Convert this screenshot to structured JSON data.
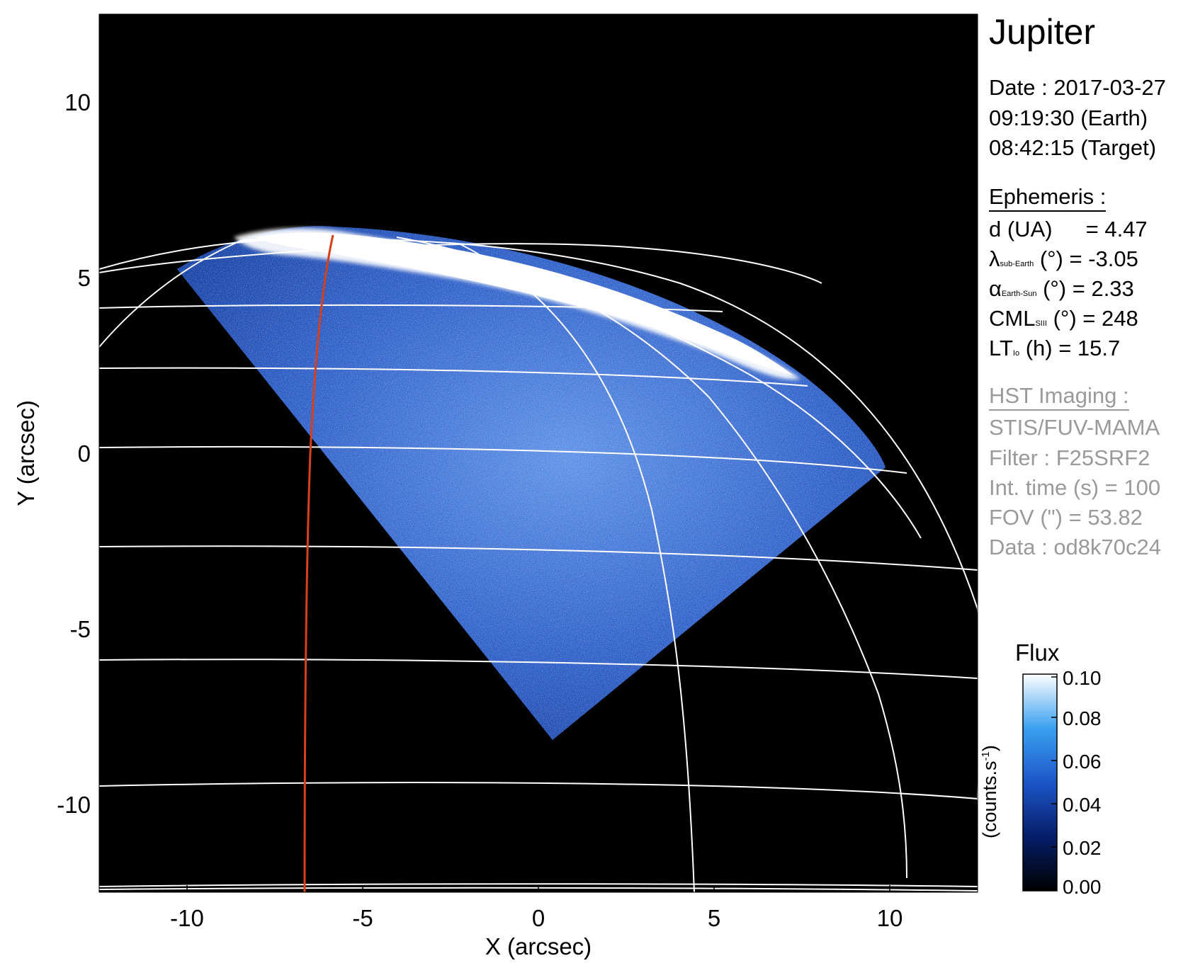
{
  "plot": {
    "xlabel": "X (arcsec)",
    "ylabel": "Y (arcsec)",
    "xlim": [
      -12.5,
      12.5
    ],
    "ylim": [
      -12.5,
      12.5
    ],
    "xticks": [
      "-10",
      "-5",
      "0",
      "5",
      "10"
    ],
    "yticks": [
      "10",
      "5",
      "0",
      "-5",
      "-10"
    ]
  },
  "info": {
    "title": "Jupiter",
    "date_line": "Date : 2017-03-27",
    "earth_time": "09:19:30 (Earth)",
    "target_time": "08:42:15 (Target)",
    "ephemeris_header": "Ephemeris :",
    "d_label": "d (UA)",
    "d_value": "= 4.47",
    "lambda_sym": "λ",
    "lambda_sub": "sub-Earth",
    "lambda_value": "(°) = -3.05",
    "alpha_sym": "α",
    "alpha_sub": "Earth-Sun",
    "alpha_value": "(°) = 2.33",
    "cml_sym": "CML",
    "cml_sub": "SIII",
    "cml_value": "(°) = 248",
    "lt_sym": "LT",
    "lt_sub": "Io",
    "lt_value": "(h) = 15.7",
    "hst_header": "HST Imaging :",
    "instrument": "STIS/FUV-MAMA",
    "filter": "Filter : F25SRF2",
    "int_time": "Int. time (s) = 100",
    "fov": "FOV (\") = 53.82",
    "dataset": "Data : od8k70c24"
  },
  "colorbar": {
    "title": "Flux",
    "unit_main": "(counts.s",
    "unit_exp": "-1",
    "unit_close": ")",
    "ticks": [
      "0.10",
      "0.08",
      "0.06",
      "0.04",
      "0.02",
      "0.00"
    ],
    "range": [
      0.0,
      0.1
    ]
  },
  "colors": {
    "background": "#000000",
    "emission_dark": "#0a2f8a",
    "emission_mid": "#2a6ad8",
    "emission_bright": "#ffffff",
    "grid": "#ffffff",
    "io_footprint": "#d6401a"
  }
}
